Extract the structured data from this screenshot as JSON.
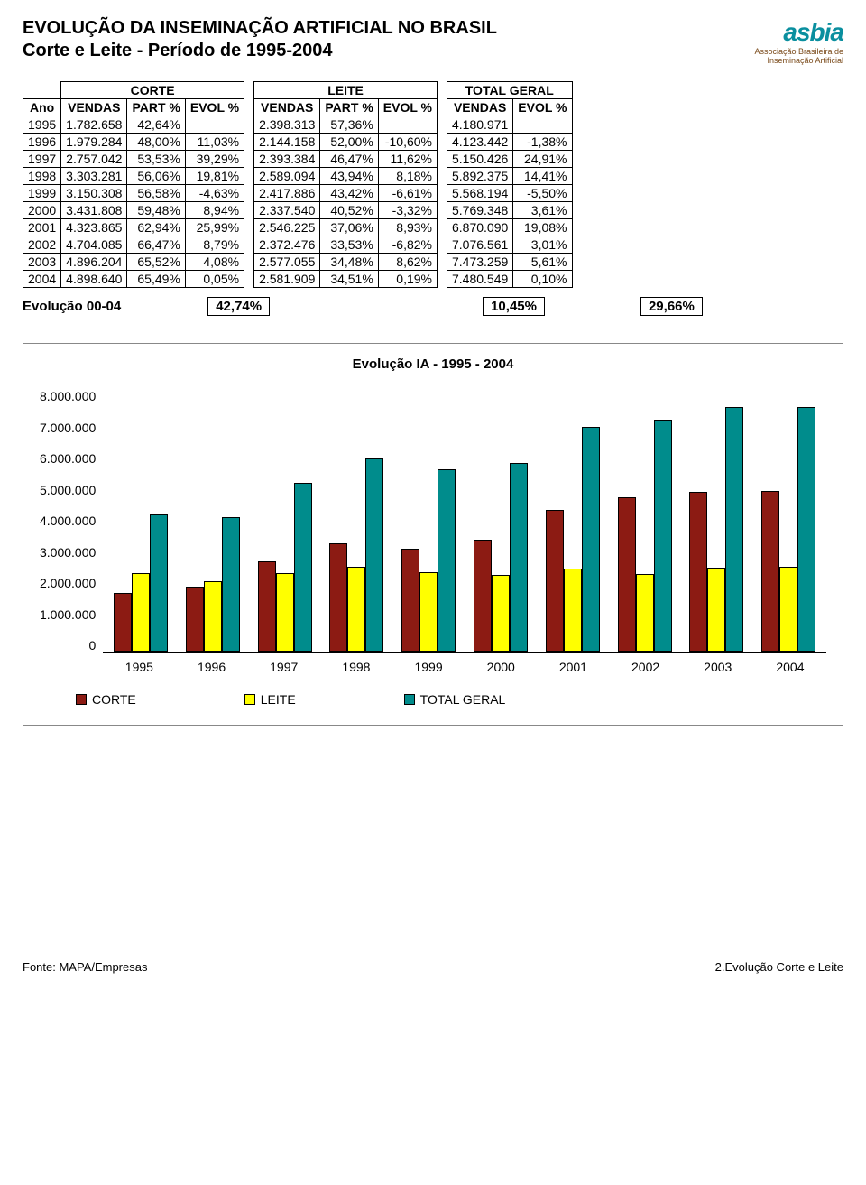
{
  "header": {
    "title1": "EVOLUÇÃO DA INSEMINAÇÃO ARTIFICIAL NO BRASIL",
    "title2": "Corte e Leite - Período de 1995-2004",
    "logo_brand": "asbia",
    "logo_sub1": "Associação Brasileira de",
    "logo_sub2": "Inseminação Artificial"
  },
  "columns": {
    "ano": "Ano",
    "corte": "CORTE",
    "leite": "LEITE",
    "total": "TOTAL GERAL",
    "vendas": "VENDAS",
    "part": "PART %",
    "evol": "EVOL %"
  },
  "rows": [
    {
      "ano": "1995",
      "c_v": "1.782.658",
      "c_p": "42,64%",
      "c_e": "",
      "l_v": "2.398.313",
      "l_p": "57,36%",
      "l_e": "",
      "t_v": "4.180.971",
      "t_e": ""
    },
    {
      "ano": "1996",
      "c_v": "1.979.284",
      "c_p": "48,00%",
      "c_e": "11,03%",
      "l_v": "2.144.158",
      "l_p": "52,00%",
      "l_e": "-10,60%",
      "t_v": "4.123.442",
      "t_e": "-1,38%"
    },
    {
      "ano": "1997",
      "c_v": "2.757.042",
      "c_p": "53,53%",
      "c_e": "39,29%",
      "l_v": "2.393.384",
      "l_p": "46,47%",
      "l_e": "11,62%",
      "t_v": "5.150.426",
      "t_e": "24,91%"
    },
    {
      "ano": "1998",
      "c_v": "3.303.281",
      "c_p": "56,06%",
      "c_e": "19,81%",
      "l_v": "2.589.094",
      "l_p": "43,94%",
      "l_e": "8,18%",
      "t_v": "5.892.375",
      "t_e": "14,41%"
    },
    {
      "ano": "1999",
      "c_v": "3.150.308",
      "c_p": "56,58%",
      "c_e": "-4,63%",
      "l_v": "2.417.886",
      "l_p": "43,42%",
      "l_e": "-6,61%",
      "t_v": "5.568.194",
      "t_e": "-5,50%"
    },
    {
      "ano": "2000",
      "c_v": "3.431.808",
      "c_p": "59,48%",
      "c_e": "8,94%",
      "l_v": "2.337.540",
      "l_p": "40,52%",
      "l_e": "-3,32%",
      "t_v": "5.769.348",
      "t_e": "3,61%"
    },
    {
      "ano": "2001",
      "c_v": "4.323.865",
      "c_p": "62,94%",
      "c_e": "25,99%",
      "l_v": "2.546.225",
      "l_p": "37,06%",
      "l_e": "8,93%",
      "t_v": "6.870.090",
      "t_e": "19,08%"
    },
    {
      "ano": "2002",
      "c_v": "4.704.085",
      "c_p": "66,47%",
      "c_e": "8,79%",
      "l_v": "2.372.476",
      "l_p": "33,53%",
      "l_e": "-6,82%",
      "t_v": "7.076.561",
      "t_e": "3,01%"
    },
    {
      "ano": "2003",
      "c_v": "4.896.204",
      "c_p": "65,52%",
      "c_e": "4,08%",
      "l_v": "2.577.055",
      "l_p": "34,48%",
      "l_e": "8,62%",
      "t_v": "7.473.259",
      "t_e": "5,61%"
    },
    {
      "ano": "2004",
      "c_v": "4.898.640",
      "c_p": "65,49%",
      "c_e": "0,05%",
      "l_v": "2.581.909",
      "l_p": "34,51%",
      "l_e": "0,19%",
      "t_v": "7.480.549",
      "t_e": "0,10%"
    }
  ],
  "evolution": {
    "label": "Evolução 00-04",
    "corte": "42,74%",
    "leite": "10,45%",
    "total": "29,66%"
  },
  "chart": {
    "title": "Evolução IA - 1995 - 2004",
    "y_ticks": [
      "8.000.000",
      "7.000.000",
      "6.000.000",
      "5.000.000",
      "4.000.000",
      "3.000.000",
      "2.000.000",
      "1.000.000",
      "0"
    ],
    "y_max": 8000000,
    "categories": [
      "1995",
      "1996",
      "1997",
      "1998",
      "1999",
      "2000",
      "2001",
      "2002",
      "2003",
      "2004"
    ],
    "series": [
      {
        "name": "CORTE",
        "color": "#8c1b13",
        "values": [
          1782658,
          1979284,
          2757042,
          3303281,
          3150308,
          3431808,
          4323865,
          4704085,
          4896204,
          4898640
        ]
      },
      {
        "name": "LEITE",
        "color": "#ffff00",
        "values": [
          2398313,
          2144158,
          2393384,
          2589094,
          2417886,
          2337540,
          2546225,
          2372476,
          2577055,
          2581909
        ]
      },
      {
        "name": "TOTAL GERAL",
        "color": "#008c8c",
        "values": [
          4180971,
          4123442,
          5150426,
          5892375,
          5568194,
          5769348,
          6870090,
          7076561,
          7473259,
          7480549
        ]
      }
    ],
    "bar_border": "#000000",
    "background": "#ffffff"
  },
  "footer": {
    "left": "Fonte:  MAPA/Empresas",
    "right": "2.Evolução Corte e Leite"
  }
}
